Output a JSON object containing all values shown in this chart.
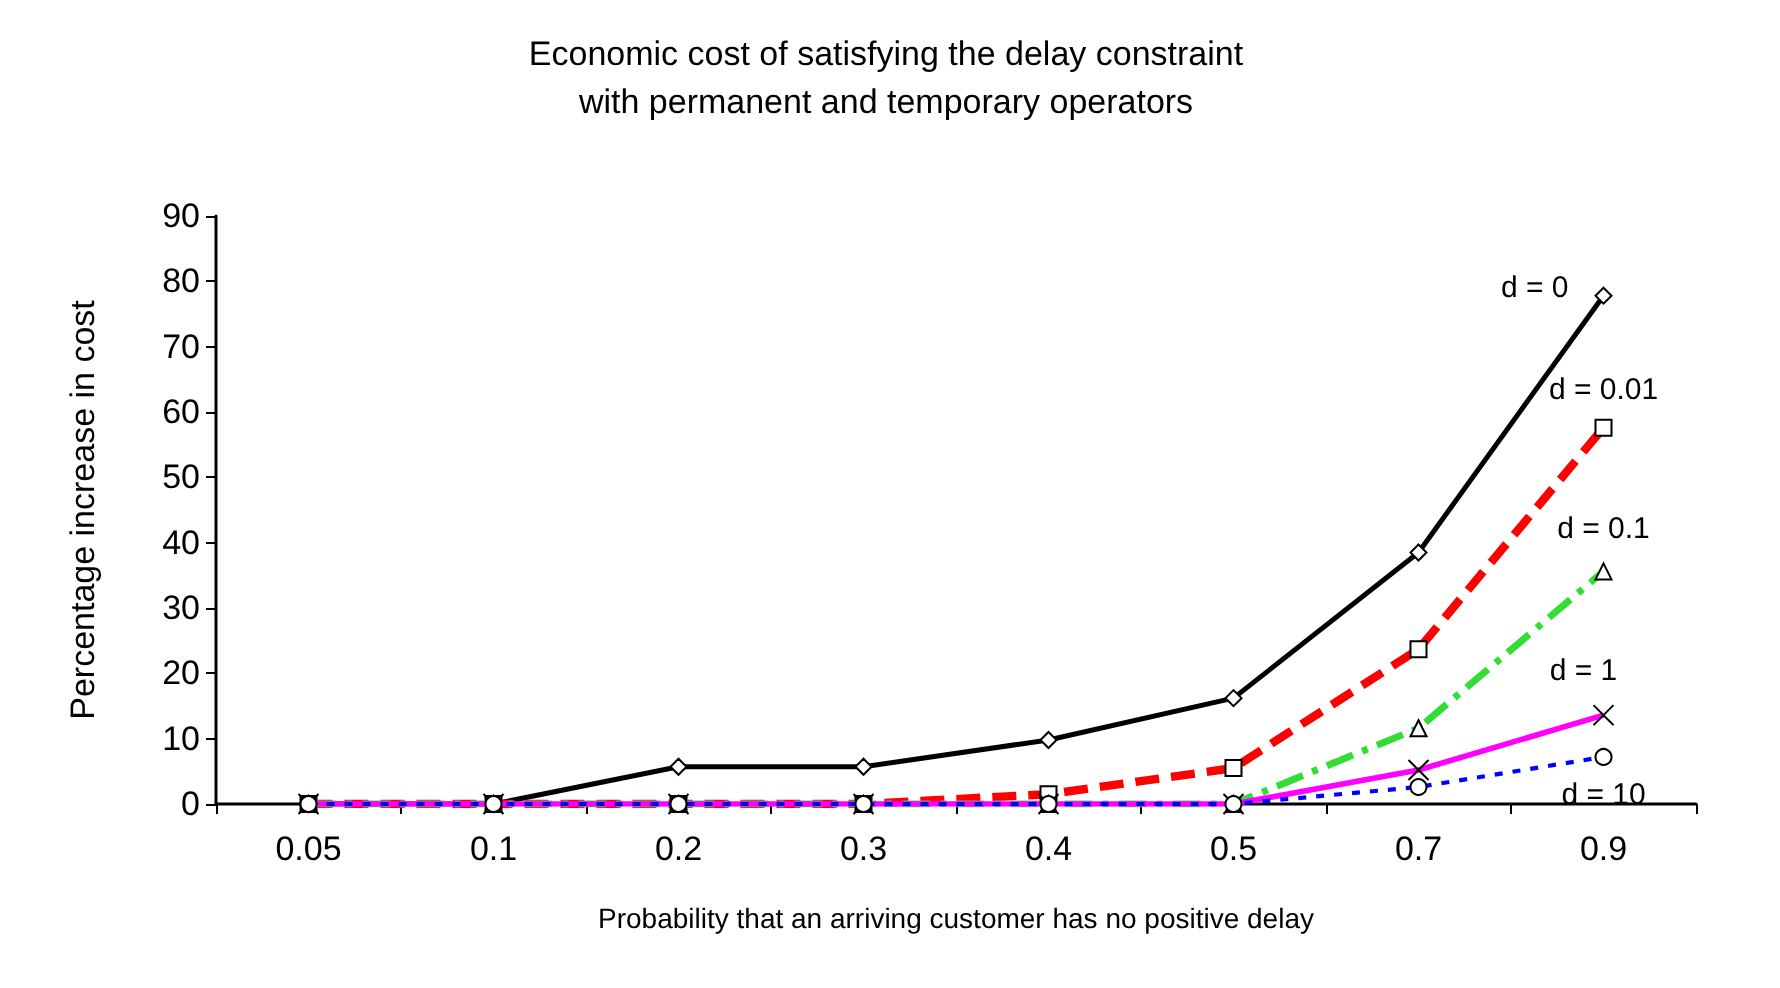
{
  "chart_data": {
    "type": "line",
    "title": "Economic cost of satisfying the delay constraint\nwith permanent and temporary operators",
    "xlabel": "Probability that an arriving customer has no positive delay",
    "ylabel": "Percentage increase in cost",
    "categories": [
      "0.05",
      "0.1",
      "0.2",
      "0.3",
      "0.4",
      "0.5",
      "0.7",
      "0.9"
    ],
    "ylim": [
      0,
      90
    ],
    "yticks": [
      0,
      10,
      20,
      30,
      40,
      50,
      60,
      70,
      80,
      90
    ],
    "grid": false,
    "legend": false,
    "series": [
      {
        "name": "d = 0",
        "color": "#000000",
        "line_style": "solid",
        "marker": "diamond",
        "values": [
          0,
          0,
          5.7,
          5.7,
          9.8,
          16.2,
          38.5,
          77.8
        ]
      },
      {
        "name": "d = 0.01",
        "color": "#ff0000",
        "line_style": "dashed",
        "marker": "square",
        "values": [
          0,
          0,
          0,
          0,
          1.5,
          5.5,
          23.7,
          57.6
        ]
      },
      {
        "name": "d = 0.1",
        "color": "#33dd33",
        "line_style": "dashed",
        "marker": "triangle",
        "values": [
          0,
          0,
          0,
          0,
          0,
          0,
          11.6,
          35.6
        ]
      },
      {
        "name": "d = 1",
        "color": "#ff00ff",
        "line_style": "solid",
        "marker": "cross",
        "values": [
          0,
          0,
          0,
          0,
          0,
          0,
          5.2,
          13.6
        ]
      },
      {
        "name": "d = 10",
        "color": "#0000ff",
        "line_style": "dotted",
        "marker": "circle",
        "values": [
          0,
          0,
          0,
          0,
          0,
          0,
          2.6,
          7.2
        ]
      }
    ]
  }
}
